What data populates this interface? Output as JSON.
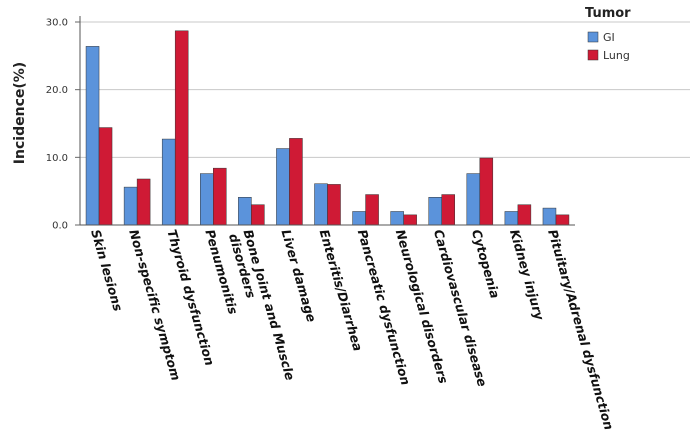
{
  "chart_data": {
    "type": "bar",
    "ylabel": "Incidence(%)",
    "xlabel": "",
    "ylim": [
      0,
      30.0
    ],
    "yticks": [
      "0.0",
      "10.0",
      "20.0",
      "30.0"
    ],
    "grid": "horizontal",
    "legend_position": "top-right",
    "legend_title": "Tumor",
    "categories": [
      "Skin lesions",
      "Non-specific symptom",
      "Thyroid dysfunction",
      "Penumonitis",
      "Bone Joint and Muscle disorders",
      "Liver damage",
      "Enteritis/Diarrhea",
      "Pancreatic dysfunction",
      "Neurological disorders",
      "Cardiovascular disease",
      "Cytopenia",
      "Kidney injury",
      "Pituitary/Adrenal dysfunction"
    ],
    "series": [
      {
        "name": "GI",
        "color": "#5b93db",
        "values": [
          26.4,
          5.6,
          12.7,
          7.6,
          4.1,
          11.3,
          6.1,
          2.0,
          2.0,
          4.1,
          7.6,
          2.0,
          2.5
        ]
      },
      {
        "name": "Lung",
        "color": "#cf1a35",
        "values": [
          14.4,
          6.8,
          28.7,
          8.4,
          3.0,
          12.8,
          6.0,
          4.5,
          1.5,
          4.5,
          9.9,
          3.0,
          1.5
        ]
      }
    ]
  }
}
